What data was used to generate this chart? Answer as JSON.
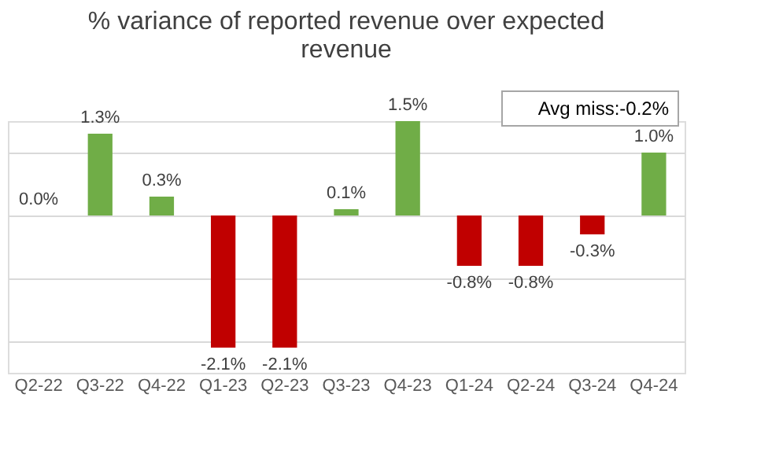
{
  "chart_data": {
    "type": "bar",
    "title": "% variance of reported revenue over expected revenue",
    "categories": [
      "Q2-22",
      "Q3-22",
      "Q4-22",
      "Q1-23",
      "Q2-23",
      "Q3-23",
      "Q4-23",
      "Q1-24",
      "Q2-24",
      "Q3-24",
      "Q4-24"
    ],
    "values": [
      0.0,
      1.3,
      0.3,
      -2.1,
      -2.1,
      0.1,
      1.5,
      -0.8,
      -0.8,
      -0.3,
      1.0
    ],
    "colors": [
      "#70ad47",
      "#70ad47",
      "#70ad47",
      "#c00000",
      "#c00000",
      "#70ad47",
      "#70ad47",
      "#c00000",
      "#c00000",
      "#c00000",
      "#70ad47"
    ],
    "value_labels": [
      "0.0%",
      "1.3%",
      "0.3%",
      "-2.1%",
      "-2.1%",
      "0.1%",
      "1.5%",
      "-0.8%",
      "-0.8%",
      "-0.3%",
      "1.0%"
    ],
    "grid": "y",
    "tick_labels": "x",
    "annotations": [
      "Avg miss:-0.2%"
    ]
  }
}
